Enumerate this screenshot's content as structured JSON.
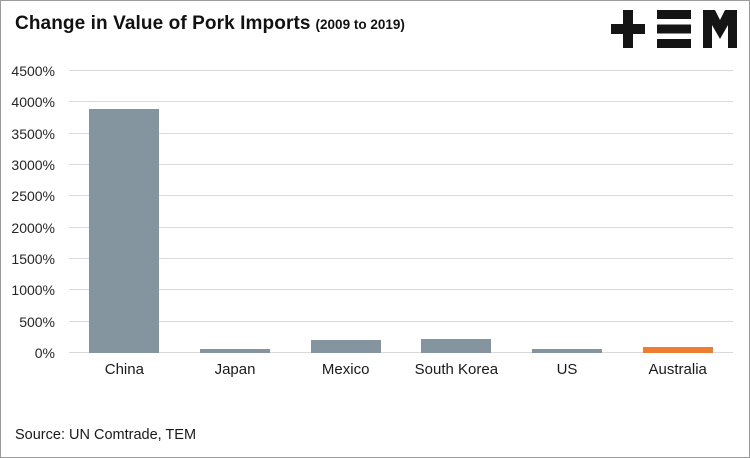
{
  "header": {
    "title": "Change in Value of Pork Imports",
    "subtitle": "(2009 to 2019)"
  },
  "logo": {
    "name": "TEM",
    "color": "#141414"
  },
  "source": "Source: UN Comtrade, TEM",
  "chart_data": {
    "type": "bar",
    "title": "Change in Value of Pork Imports (2009 to 2019)",
    "categories": [
      "China",
      "Japan",
      "Mexico",
      "South Korea",
      "US",
      "Australia"
    ],
    "values": [
      3900,
      60,
      200,
      220,
      70,
      90
    ],
    "bar_colors": [
      "#84959f",
      "#84959f",
      "#84959f",
      "#84959f",
      "#84959f",
      "#ED7D31"
    ],
    "xlabel": "",
    "ylabel": "",
    "ylim": [
      0,
      4500
    ],
    "ytick_step": 500,
    "ytick_suffix": "%",
    "grid": true,
    "gridline_color": "#d9d9d9",
    "legend": "none"
  }
}
